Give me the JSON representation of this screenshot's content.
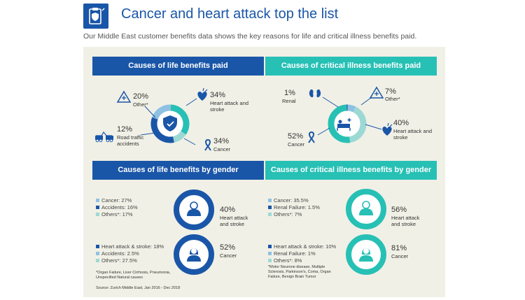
{
  "header": {
    "title": "Cancer and heart attack top the list",
    "subtitle": "Our Middle East customer benefits data shows the key reasons for life and critical illness benefits paid."
  },
  "colors": {
    "dark_blue": "#1a56a8",
    "teal": "#27c0b5",
    "light_teal": "#9dd9d4",
    "light_blue": "#8fc1e3",
    "panel_bg": "#f1f0e6"
  },
  "life_paid": {
    "title": "Causes of life benefits paid",
    "items": [
      {
        "pct": "20%",
        "label": "Other*",
        "icon": "triangle-plus-icon"
      },
      {
        "pct": "34%",
        "label": "Heart attack and stroke",
        "icon": "heart-icon"
      },
      {
        "pct": "12%",
        "label": "Road traffic accidents",
        "icon": "car-crash-icon"
      },
      {
        "pct": "34%",
        "label": "Cancer",
        "icon": "ribbon-icon"
      }
    ]
  },
  "ci_paid": {
    "title": "Causes of critical illness benefits paid",
    "items": [
      {
        "pct": "1%",
        "label": "Renal",
        "icon": "kidney-icon"
      },
      {
        "pct": "7%",
        "label": "Other*",
        "icon": "triangle-plus-icon"
      },
      {
        "pct": "40%",
        "label": "Heart attack and stroke",
        "icon": "heart-icon"
      },
      {
        "pct": "52%",
        "label": "Cancer",
        "icon": "ribbon-icon"
      }
    ]
  },
  "life_gender": {
    "title": "Causes of life benefits by gender",
    "male_legend": [
      "Cancer: 27%",
      "Accidents: 16%",
      "Others*: 17%"
    ],
    "male_pct": "40%",
    "male_label": "Heart attack and stroke",
    "female_legend": [
      "Heart attack & stroke: 18%",
      "Accidents: 2.5%",
      "Others*: 27.5%"
    ],
    "female_pct": "52%",
    "female_label": "Cancer",
    "note": "*Organ Failure, Liver Cirrhosis, Pneumonia, Unspecified Natural causes",
    "source": "Source: Zurich Middle East, Jan 2016 - Dec 2018"
  },
  "ci_gender": {
    "title": "Causes of critical illness benefits by gender",
    "male_legend": [
      "Cancer: 35.5%",
      "Renal Failure: 1.5%",
      "Others*: 7%"
    ],
    "male_pct": "56%",
    "male_label": "Heart attack and stroke",
    "female_legend": [
      "Heart attack & stroke: 10%",
      "Renal Failure: 1%",
      "Others*: 8%"
    ],
    "female_pct": "81%",
    "female_label": "Cancer",
    "note": "*Motor Neurone disease, Multiple Sclerosis, Parkinson's, Coma, Organ Failure, Benign Brain Tumor"
  },
  "chart_data": [
    {
      "type": "pie",
      "categories": [
        "Other*",
        "Heart attack and stroke",
        "Road traffic accidents",
        "Cancer"
      ],
      "values": [
        20,
        34,
        12,
        34
      ],
      "title": "Causes of life benefits paid"
    },
    {
      "type": "pie",
      "categories": [
        "Renal",
        "Other*",
        "Heart attack and stroke",
        "Cancer"
      ],
      "values": [
        1,
        7,
        40,
        52
      ],
      "title": "Causes of critical illness benefits paid"
    }
  ]
}
